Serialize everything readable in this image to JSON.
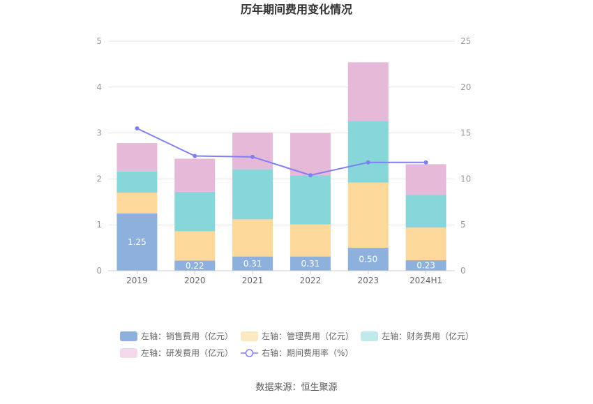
{
  "chart_data": {
    "type": "bar",
    "stacked": true,
    "title": "历年期间费用变化情况",
    "categories": [
      "2019",
      "2020",
      "2021",
      "2022",
      "2023",
      "2024H1"
    ],
    "left_axis": {
      "ylim": [
        0,
        5
      ],
      "ticks": [
        "0",
        "1",
        "2",
        "3",
        "4",
        "5"
      ]
    },
    "right_axis": {
      "ylim": [
        0,
        25
      ],
      "ticks": [
        "0",
        "5",
        "10",
        "15",
        "20",
        "25"
      ]
    },
    "series": [
      {
        "name": "左轴：销售费用（亿元）",
        "axis": "left",
        "kind": "bar",
        "color": "#8eb0dd",
        "values": [
          1.25,
          0.22,
          0.31,
          0.31,
          0.5,
          0.23
        ],
        "labels": [
          "1.25",
          "0.22",
          "0.31",
          "0.31",
          "0.50",
          "0.23"
        ]
      },
      {
        "name": "左轴：管理费用（亿元）",
        "axis": "left",
        "kind": "bar",
        "color": "#fdd89b",
        "values": [
          0.45,
          0.64,
          0.81,
          0.7,
          1.42,
          0.71
        ]
      },
      {
        "name": "左轴：财务费用（亿元）",
        "axis": "left",
        "kind": "bar",
        "color": "#86d6da",
        "values": [
          0.46,
          0.86,
          1.09,
          1.07,
          1.34,
          0.71
        ]
      },
      {
        "name": "左轴：研发费用（亿元）",
        "axis": "left",
        "kind": "bar",
        "color": "#e6b9d9",
        "values": [
          0.62,
          0.72,
          0.8,
          0.92,
          1.28,
          0.67
        ]
      },
      {
        "name": "右轴：期间费用率（%）",
        "axis": "right",
        "kind": "line",
        "color": "#7f7ff2",
        "values": [
          15.5,
          12.5,
          12.4,
          10.4,
          11.8,
          11.8
        ]
      }
    ],
    "legend_position": "bottom",
    "source": "数据来源：恒生聚源"
  }
}
